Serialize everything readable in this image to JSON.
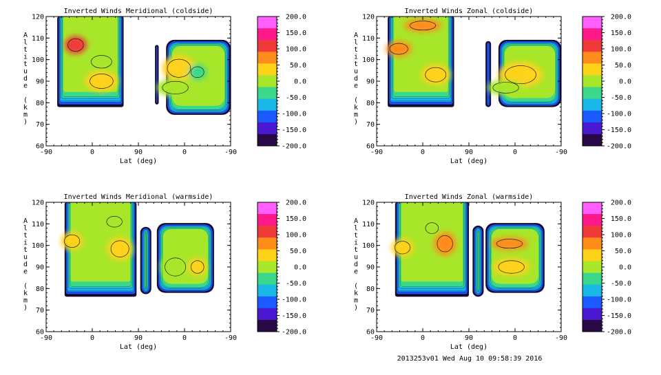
{
  "footer": "2013253v01 Wed Aug 10 09:58:39 2016",
  "colorbar": {
    "labels": [
      "200.0",
      "150.0",
      "100.0",
      "50.0",
      "0.0",
      "-50.0",
      "-100.0",
      "-150.0",
      "-200.0"
    ],
    "colors": [
      "#ff5fff",
      "#ff1a8c",
      "#f03a3a",
      "#ff8c1a",
      "#ffd21a",
      "#a8e62a",
      "#3ad88c",
      "#1ab8e6",
      "#1a5aff",
      "#4a1ad2",
      "#2a0a46"
    ]
  },
  "chart_data": [
    {
      "type": "heatmap",
      "title": "Inverted Winds Meridional (coldside)",
      "xlabel": "Lat (deg)",
      "ylabel": "Altitude (km)",
      "xticks": [
        "-90",
        "0",
        "90",
        "0",
        "-90"
      ],
      "yticks": [
        "60",
        "70",
        "80",
        "90",
        "100",
        "110",
        "120"
      ],
      "ylim": [
        60,
        120
      ],
      "clim": [
        -200,
        200
      ]
    },
    {
      "type": "heatmap",
      "title": "Inverted Winds Zonal (coldside)",
      "xlabel": "Lat (deg)",
      "ylabel": "Altitude (km)",
      "xticks": [
        "-90",
        "0",
        "90",
        "0",
        "-90"
      ],
      "yticks": [
        "60",
        "70",
        "80",
        "90",
        "100",
        "110",
        "120"
      ],
      "ylim": [
        60,
        120
      ],
      "clim": [
        -200,
        200
      ]
    },
    {
      "type": "heatmap",
      "title": "Inverted Winds Meridional (warmside)",
      "xlabel": "Lat (deg)",
      "ylabel": "Altitude (km)",
      "xticks": [
        "-90",
        "0",
        "90",
        "0",
        "-90"
      ],
      "yticks": [
        "60",
        "70",
        "80",
        "90",
        "100",
        "110",
        "120"
      ],
      "ylim": [
        60,
        120
      ],
      "clim": [
        -200,
        200
      ]
    },
    {
      "type": "heatmap",
      "title": "Inverted Winds Zonal (warmside)",
      "xlabel": "Lat (deg)",
      "ylabel": "Altitude (km)",
      "xticks": [
        "-90",
        "0",
        "90",
        "0",
        "-90"
      ],
      "yticks": [
        "60",
        "70",
        "80",
        "90",
        "100",
        "110",
        "120"
      ],
      "ylim": [
        60,
        120
      ],
      "clim": [
        -200,
        200
      ]
    }
  ]
}
